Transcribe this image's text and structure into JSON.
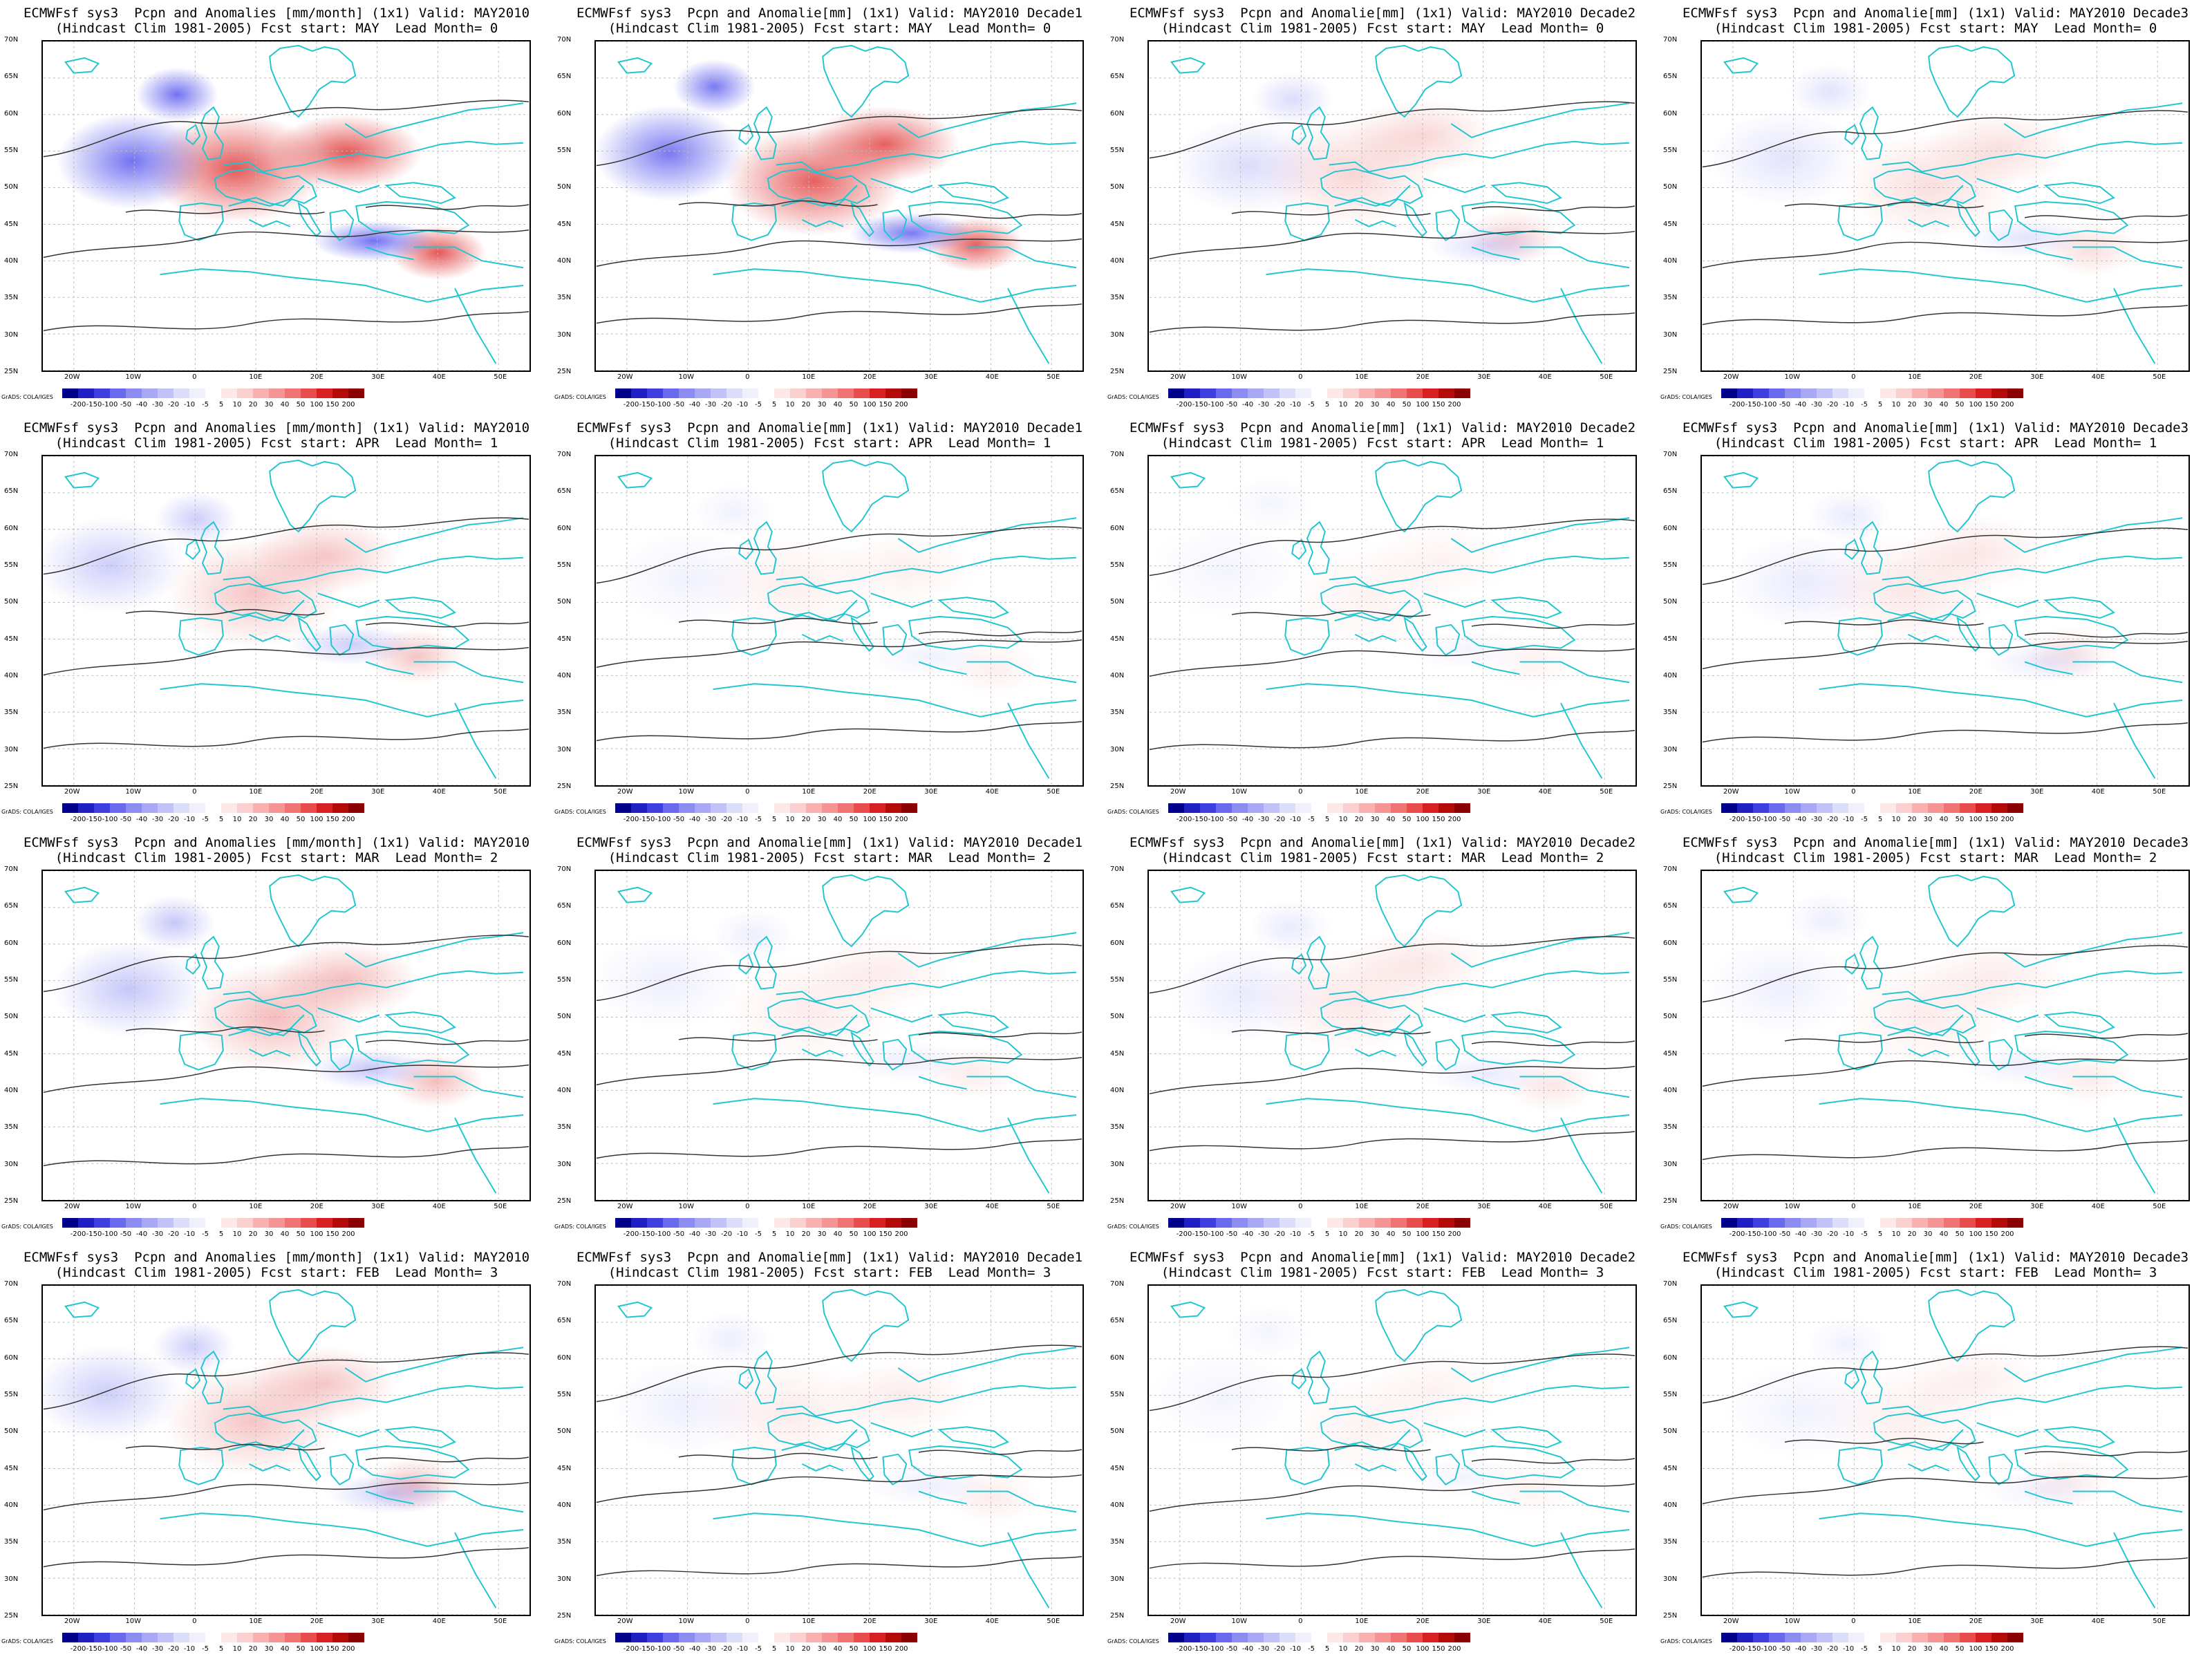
{
  "panels": [
    {
      "title1": "ECMWFsf sys3  Pcpn and Anomalies [mm/month] (1x1) Valid: MAY2010",
      "title2": "(Hindcast Clim 1981-2005) Fcst start: MAY  Lead Month= 0",
      "intensity": 1.0
    },
    {
      "title1": "ECMWFsf sys3  Pcpn and Anomalie[mm] (1x1) Valid: MAY2010 Decade1",
      "title2": "(Hindcast Clim 1981-2005) Fcst start: MAY  Lead Month= 0",
      "intensity": 0.95
    },
    {
      "title1": "ECMWFsf sys3  Pcpn and Anomalie[mm] (1x1) Valid: MAY2010 Decade2",
      "title2": "(Hindcast Clim 1981-2005) Fcst start: MAY  Lead Month= 0",
      "intensity": 0.25
    },
    {
      "title1": "ECMWFsf sys3  Pcpn and Anomalie[mm] (1x1) Valid: MAY2010 Decade3",
      "title2": "(Hindcast Clim 1981-2005) Fcst start: MAY  Lead Month= 0",
      "intensity": 0.2
    },
    {
      "title1": "ECMWFsf sys3  Pcpn and Anomalies [mm/month] (1x1) Valid: MAY2010",
      "title2": "(Hindcast Clim 1981-2005) Fcst start: APR  Lead Month= 1",
      "intensity": 0.35
    },
    {
      "title1": "ECMWFsf sys3  Pcpn and Anomalie[mm] (1x1) Valid: MAY2010 Decade1",
      "title2": "(Hindcast Clim 1981-2005) Fcst start: APR  Lead Month= 1",
      "intensity": 0.1
    },
    {
      "title1": "ECMWFsf sys3  Pcpn and Anomalie[mm] (1x1) Valid: MAY2010 Decade2",
      "title2": "(Hindcast Clim 1981-2005) Fcst start: APR  Lead Month= 1",
      "intensity": 0.08
    },
    {
      "title1": "ECMWFsf sys3  Pcpn and Anomalie[mm] (1x1) Valid: MAY2010 Decade3",
      "title2": "(Hindcast Clim 1981-2005) Fcst start: APR  Lead Month= 1",
      "intensity": 0.15
    },
    {
      "title1": "ECMWFsf sys3  Pcpn and Anomalies [mm/month] (1x1) Valid: MAY2010",
      "title2": "(Hindcast Clim 1981-2005) Fcst start: MAR  Lead Month= 2",
      "intensity": 0.4
    },
    {
      "title1": "ECMWFsf sys3  Pcpn and Anomalie[mm] (1x1) Valid: MAY2010 Decade1",
      "title2": "(Hindcast Clim 1981-2005) Fcst start: MAR  Lead Month= 2",
      "intensity": 0.12
    },
    {
      "title1": "ECMWFsf sys3  Pcpn and Anomalie[mm] (1x1) Valid: MAY2010 Decade2",
      "title2": "(Hindcast Clim 1981-2005) Fcst start: MAR  Lead Month= 2",
      "intensity": 0.15
    },
    {
      "title1": "ECMWFsf sys3  Pcpn and Anomalie[mm] (1x1) Valid: MAY2010 Decade3",
      "title2": "(Hindcast Clim 1981-2005) Fcst start: MAR  Lead Month= 2",
      "intensity": 0.12
    },
    {
      "title1": "ECMWFsf sys3  Pcpn and Anomalies [mm/month] (1x1) Valid: MAY2010",
      "title2": "(Hindcast Clim 1981-2005) Fcst start: FEB  Lead Month= 3",
      "intensity": 0.35
    },
    {
      "title1": "ECMWFsf sys3  Pcpn and Anomalie[mm] (1x1) Valid: MAY2010 Decade1",
      "title2": "(Hindcast Clim 1981-2005) Fcst start: FEB  Lead Month= 3",
      "intensity": 0.12
    },
    {
      "title1": "ECMWFsf sys3  Pcpn and Anomalie[mm] (1x1) Valid: MAY2010 Decade2",
      "title2": "(Hindcast Clim 1981-2005) Fcst start: FEB  Lead Month= 3",
      "intensity": 0.08
    },
    {
      "title1": "ECMWFsf sys3  Pcpn and Anomalie[mm] (1x1) Valid: MAY2010 Decade3",
      "title2": "(Hindcast Clim 1981-2005) Fcst start: FEB  Lead Month= 3",
      "intensity": 0.1
    }
  ],
  "lat_labels": [
    "70N",
    "65N",
    "60N",
    "55N",
    "50N",
    "45N",
    "40N",
    "35N",
    "30N",
    "25N"
  ],
  "lon_labels": [
    "20W",
    "10W",
    "0",
    "10E",
    "20E",
    "30E",
    "40E",
    "50E"
  ],
  "colorbar": {
    "labels": [
      "-200",
      "-150",
      "-100",
      "-50",
      "-40",
      "-30",
      "-20",
      "-10",
      "-5",
      "5",
      "10",
      "20",
      "30",
      "40",
      "50",
      "100",
      "150",
      "200"
    ],
    "colors": [
      "#00008b",
      "#1f1fc4",
      "#3f3fe0",
      "#6a6aee",
      "#8c8cf2",
      "#a8a8f5",
      "#c2c2f8",
      "#dcdcfb",
      "#f0f0fd",
      "#ffffff",
      "#fde8e8",
      "#fbcfcf",
      "#f8b0b0",
      "#f59494",
      "#f07474",
      "#e84c4c",
      "#d82020",
      "#b40a0a",
      "#8b0000"
    ]
  },
  "credit": "GrADS: COLA/IGES",
  "colors": {
    "coast": "#22c6d0",
    "contour": "#333333",
    "grid": "#bbbbbb"
  }
}
